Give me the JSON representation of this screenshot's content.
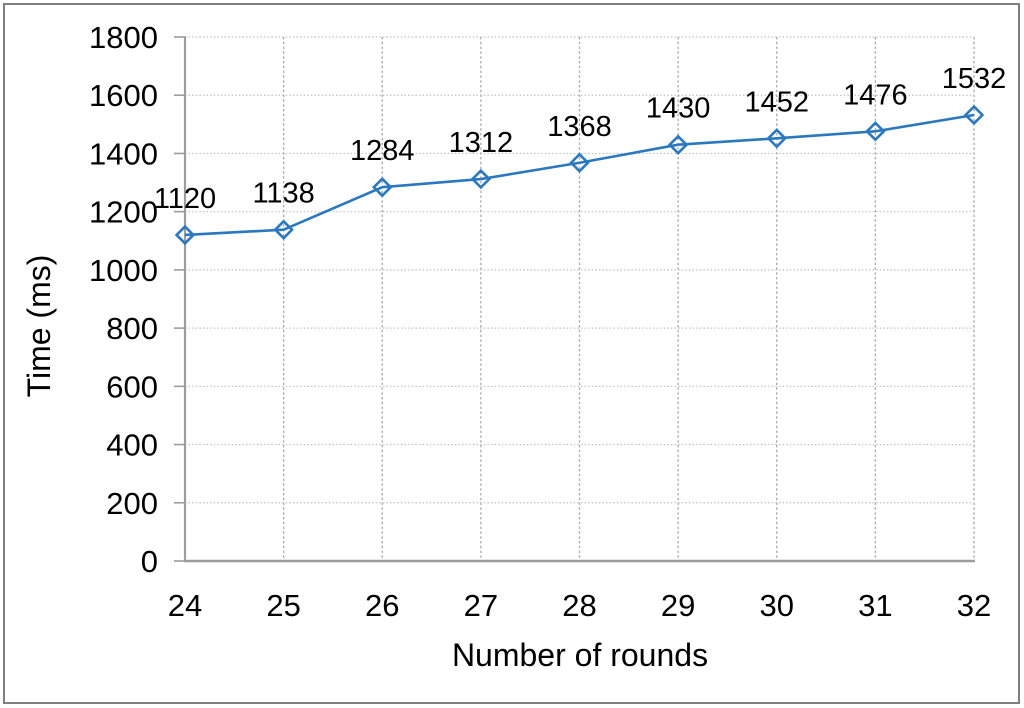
{
  "chart_data": {
    "type": "line",
    "title": "",
    "xlabel": "Number of rounds",
    "ylabel": "Time (ms)",
    "x": [
      24,
      25,
      26,
      27,
      28,
      29,
      30,
      31,
      32
    ],
    "series": [
      {
        "name": "Time (ms)",
        "values": [
          1120,
          1138,
          1284,
          1312,
          1368,
          1430,
          1452,
          1476,
          1532
        ]
      }
    ],
    "data_labels": [
      1120,
      1138,
      1284,
      1312,
      1368,
      1430,
      1452,
      1476,
      1532
    ],
    "x_tick_labels": [
      "24",
      "25",
      "26",
      "27",
      "28",
      "29",
      "30",
      "31",
      "32"
    ],
    "y_tick_labels": [
      "0",
      "200",
      "400",
      "600",
      "800",
      "1000",
      "1200",
      "1400",
      "1600",
      "1800"
    ],
    "ylim": [
      0,
      1800
    ],
    "ytick_step": 200,
    "grid": "both",
    "gridline_style": "dotted",
    "legend": "none",
    "marker": "diamond-open",
    "colors": {
      "line": "#2b78be",
      "marker_stroke": "#2b78be",
      "text": "#000000",
      "grid_horizontal": "#bdbdbd",
      "grid_vertical": "#a8a8a8",
      "axis": "#9d9d9d",
      "frame_border": "#7f7f7f",
      "background": "#ffffff"
    }
  }
}
